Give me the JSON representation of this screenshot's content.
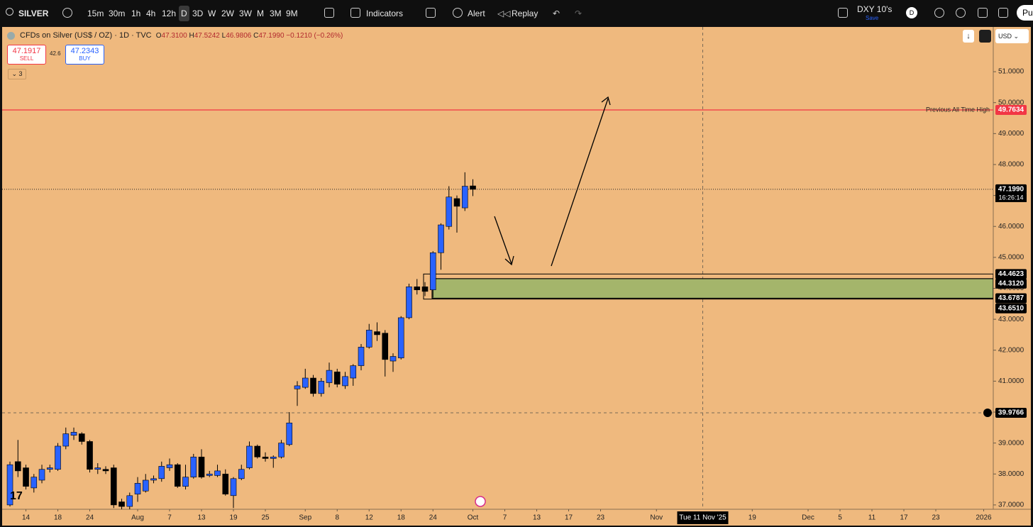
{
  "toolbar": {
    "symbol": "SILVER",
    "intervals": [
      "15m",
      "30m",
      "1h",
      "4h",
      "12h",
      "D",
      "3D",
      "W",
      "2W",
      "3W",
      "M",
      "3M",
      "9M"
    ],
    "indicators": "Indicators",
    "alert": "Alert",
    "replay": "Replay",
    "layout_name": "DXY 10's",
    "save": "Save",
    "avatar": "D",
    "publish": "Pu"
  },
  "legend": {
    "title": "CFDs on Silver (US$ / OZ) · 1D · TVC",
    "open_label": "O",
    "open": "47.3100",
    "high_label": "H",
    "high": "47.5242",
    "low_label": "L",
    "low": "46.9806",
    "close_label": "C",
    "close": "47.1990",
    "change": "−0.1210 (−0.26%)"
  },
  "trade": {
    "sell_price": "47.1917",
    "sell": "SELL",
    "spread": "42.6",
    "buy_price": "47.2343",
    "buy": "BUY",
    "indicator_count": "3"
  },
  "currency": "USD",
  "chart_data": {
    "type": "candlestick",
    "x": [
      0,
      1,
      2,
      3,
      4,
      5,
      6,
      7,
      8,
      9,
      10,
      11,
      12,
      13,
      14,
      15,
      16,
      17,
      18,
      19,
      20,
      21,
      22,
      23,
      24,
      25,
      26,
      27,
      28,
      29,
      30,
      31,
      32,
      33,
      34,
      35,
      36,
      37,
      38,
      39,
      40,
      41,
      42,
      43,
      44,
      45,
      46,
      47,
      48,
      49,
      50,
      51,
      52,
      53,
      54,
      55,
      56,
      57,
      58
    ],
    "open": [
      37.0,
      38.4,
      38.2,
      37.55,
      37.8,
      38.15,
      38.15,
      38.9,
      39.25,
      39.3,
      39.05,
      38.15,
      38.15,
      38.2,
      37.1,
      36.95,
      37.35,
      37.45,
      37.8,
      37.85,
      38.2,
      38.3,
      37.6,
      37.9,
      38.55,
      37.95,
      37.95,
      38.0,
      37.3,
      37.85,
      38.2,
      38.9,
      38.55,
      38.5,
      38.55,
      38.95,
      40.75,
      40.8,
      41.1,
      40.6,
      40.95,
      41.3,
      40.85,
      41.1,
      41.5,
      42.1,
      42.6,
      42.55,
      41.65,
      41.75,
      43.05,
      44.05,
      44.05,
      43.95,
      45.15,
      46.0,
      46.9,
      46.6,
      47.31
    ],
    "high": [
      38.4,
      39.1,
      38.3,
      38.0,
      38.3,
      38.3,
      39.0,
      39.5,
      39.5,
      39.35,
      39.1,
      38.35,
      38.25,
      38.3,
      37.2,
      37.4,
      37.9,
      38.0,
      37.95,
      38.4,
      38.5,
      38.35,
      38.3,
      38.65,
      38.8,
      38.1,
      38.3,
      38.15,
      37.9,
      38.3,
      39.05,
      38.95,
      38.7,
      38.6,
      39.1,
      40.0,
      41.0,
      41.4,
      41.2,
      41.1,
      41.6,
      41.4,
      41.3,
      41.55,
      42.2,
      42.85,
      42.9,
      42.65,
      41.9,
      43.1,
      44.15,
      44.3,
      44.2,
      45.2,
      46.1,
      47.3,
      47.0,
      47.75,
      47.5242
    ],
    "low": [
      36.95,
      37.9,
      37.5,
      37.4,
      37.7,
      38.05,
      38.1,
      38.8,
      39.1,
      38.95,
      38.05,
      38.0,
      38.0,
      36.9,
      36.8,
      36.8,
      37.1,
      37.4,
      37.7,
      37.75,
      38.1,
      37.55,
      37.5,
      37.85,
      37.85,
      37.9,
      37.9,
      37.3,
      36.9,
      37.8,
      38.15,
      38.5,
      38.4,
      38.2,
      38.5,
      38.9,
      40.2,
      40.75,
      40.5,
      40.5,
      40.8,
      40.8,
      40.75,
      40.85,
      41.35,
      42.05,
      42.3,
      41.15,
      41.3,
      41.7,
      43.0,
      43.8,
      43.75,
      43.7,
      44.6,
      45.9,
      45.8,
      46.5,
      46.9806
    ],
    "close": [
      38.3,
      38.1,
      37.6,
      37.9,
      38.15,
      38.2,
      38.9,
      39.3,
      39.35,
      39.05,
      38.15,
      38.2,
      38.1,
      37.0,
      36.95,
      37.3,
      37.7,
      37.8,
      37.85,
      38.25,
      38.3,
      37.6,
      37.9,
      38.55,
      37.9,
      38.0,
      38.1,
      37.35,
      37.85,
      38.15,
      38.9,
      38.55,
      38.5,
      38.55,
      39.0,
      39.65,
      40.85,
      41.1,
      40.6,
      41.0,
      41.35,
      40.9,
      41.15,
      41.5,
      42.1,
      42.65,
      42.5,
      41.7,
      41.8,
      43.05,
      44.05,
      43.95,
      43.9,
      45.15,
      46.05,
      46.95,
      46.65,
      47.3,
      47.199
    ],
    "up_color": "#2962ff",
    "down_color": "#000000",
    "wick_color": "#000000",
    "background": "#efb97e",
    "xlim": [
      -0.98,
      123.2
    ],
    "xticks": [
      {
        "value": 2,
        "label": "14"
      },
      {
        "value": 6,
        "label": "18"
      },
      {
        "value": 10,
        "label": "24"
      },
      {
        "value": 16,
        "label": "Aug"
      },
      {
        "value": 20,
        "label": "7"
      },
      {
        "value": 24,
        "label": "13"
      },
      {
        "value": 28,
        "label": "19"
      },
      {
        "value": 32,
        "label": "25"
      },
      {
        "value": 37,
        "label": "Sep"
      },
      {
        "value": 41,
        "label": "8"
      },
      {
        "value": 45,
        "label": "12"
      },
      {
        "value": 49,
        "label": "18"
      },
      {
        "value": 53,
        "label": "24"
      },
      {
        "value": 58,
        "label": "Oct"
      },
      {
        "value": 62,
        "label": "7"
      },
      {
        "value": 66,
        "label": "13"
      },
      {
        "value": 70,
        "label": "17"
      },
      {
        "value": 74,
        "label": "23"
      },
      {
        "value": 81,
        "label": "Nov"
      },
      {
        "value": 93,
        "label": "19"
      },
      {
        "value": 100,
        "label": "Dec"
      },
      {
        "value": 104,
        "label": "5"
      },
      {
        "value": 108,
        "label": "11"
      },
      {
        "value": 112,
        "label": "17"
      },
      {
        "value": 116,
        "label": "23"
      },
      {
        "value": 122,
        "label": "2026"
      }
    ],
    "ylim": [
      36.86,
      52.4
    ],
    "yticks": [
      {
        "value": 37,
        "label": "37.0000"
      },
      {
        "value": 38,
        "label": "38.0000"
      },
      {
        "value": 39,
        "label": "39.0000"
      },
      {
        "value": 40,
        "label": "40.0000"
      },
      {
        "value": 41,
        "label": "41.0000"
      },
      {
        "value": 42,
        "label": "42.0000"
      },
      {
        "value": 43,
        "label": "43.0000"
      },
      {
        "value": 44,
        "label": "44.0000"
      },
      {
        "value": 45,
        "label": "45.0000"
      },
      {
        "value": 46,
        "label": "46.0000"
      },
      {
        "value": 47,
        "label": "47.0000"
      },
      {
        "value": 48,
        "label": "48.0000"
      },
      {
        "value": 49,
        "label": "49.0000"
      },
      {
        "value": 50,
        "label": "50.0000"
      },
      {
        "value": 51,
        "label": "51.0000"
      }
    ],
    "ath_line": {
      "text": "Previous All Time High",
      "price": {
        "value": 49.7634,
        "label": "49.7634"
      },
      "color": "#f23645"
    },
    "last_price": {
      "value": 47.199,
      "label": "47.1990"
    },
    "countdown": "16:26:14",
    "zone": {
      "outer": [
        {
          "value": 44.4623,
          "label": "44.4623"
        },
        {
          "value": 43.651,
          "label": "43.6510"
        }
      ],
      "inner": [
        {
          "value": 44.312,
          "label": "44.3120"
        },
        {
          "value": 43.6787,
          "label": "43.6787"
        }
      ],
      "color": "#a4b56b"
    },
    "crosshair": {
      "price": {
        "value": 39.9766,
        "label": "39.9766"
      },
      "time": {
        "value": 86.8,
        "label": "Tue 11 Nov '25"
      }
    }
  }
}
